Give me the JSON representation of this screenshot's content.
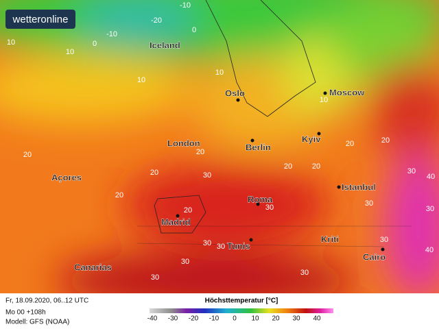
{
  "logo": "wetteronline",
  "cities": [
    "Iceland",
    "Oslo",
    "Moscow",
    "London",
    "Berlin",
    "Kyiv",
    "Açores",
    "Istanbul",
    "Roma",
    "Madrid",
    "Tunis",
    "Kriti",
    "Canarias",
    "Cairo"
  ],
  "contour_labels": [
    -10,
    -20,
    -10,
    0,
    10,
    0,
    10,
    10,
    10,
    10,
    20,
    20,
    20,
    30,
    20,
    20,
    20,
    20,
    20,
    30,
    40,
    30,
    30,
    30,
    20,
    30,
    30,
    30,
    30,
    30,
    30,
    40
  ],
  "footer": {
    "date": "Fr, 18.09.2020, 06..12 UTC",
    "run": "Mo 00 +108h",
    "model": "Modell: GFS (NOAA)"
  },
  "colorbar": {
    "title": "Höchsttemperatur [°C]",
    "ticks": [
      -40,
      -30,
      -20,
      -10,
      0,
      10,
      20,
      30,
      40
    ]
  }
}
